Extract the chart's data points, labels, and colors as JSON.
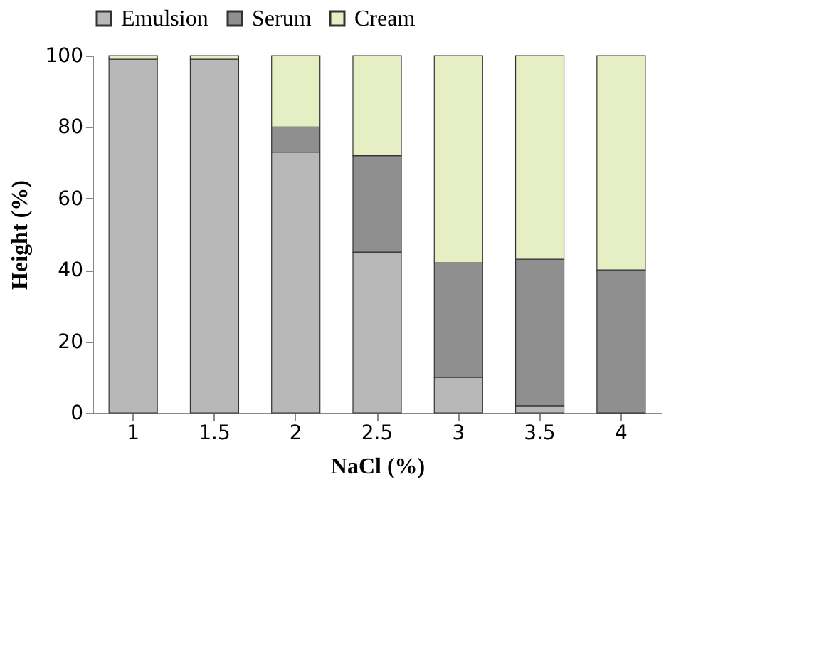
{
  "chart_data": {
    "type": "bar",
    "stacked": true,
    "xlabel": "NaCl (%)",
    "ylabel": "Height (%)",
    "categories": [
      "1",
      "1.5",
      "2",
      "2.5",
      "3",
      "3.5",
      "4"
    ],
    "series": [
      {
        "name": "Emulsion",
        "color": "#b8b8b8",
        "values": [
          99,
          99,
          73,
          45,
          10,
          2,
          0
        ]
      },
      {
        "name": "Serum",
        "color": "#8f8f8f",
        "values": [
          0,
          0,
          7,
          27,
          32,
          41,
          40
        ]
      },
      {
        "name": "Cream",
        "color": "#e6efc4",
        "values": [
          1,
          1,
          20,
          28,
          58,
          57,
          60
        ]
      }
    ],
    "ylim": [
      0,
      100
    ],
    "yticks": [
      0,
      20,
      40,
      60,
      80,
      100
    ],
    "grid": false,
    "legend": "top"
  }
}
